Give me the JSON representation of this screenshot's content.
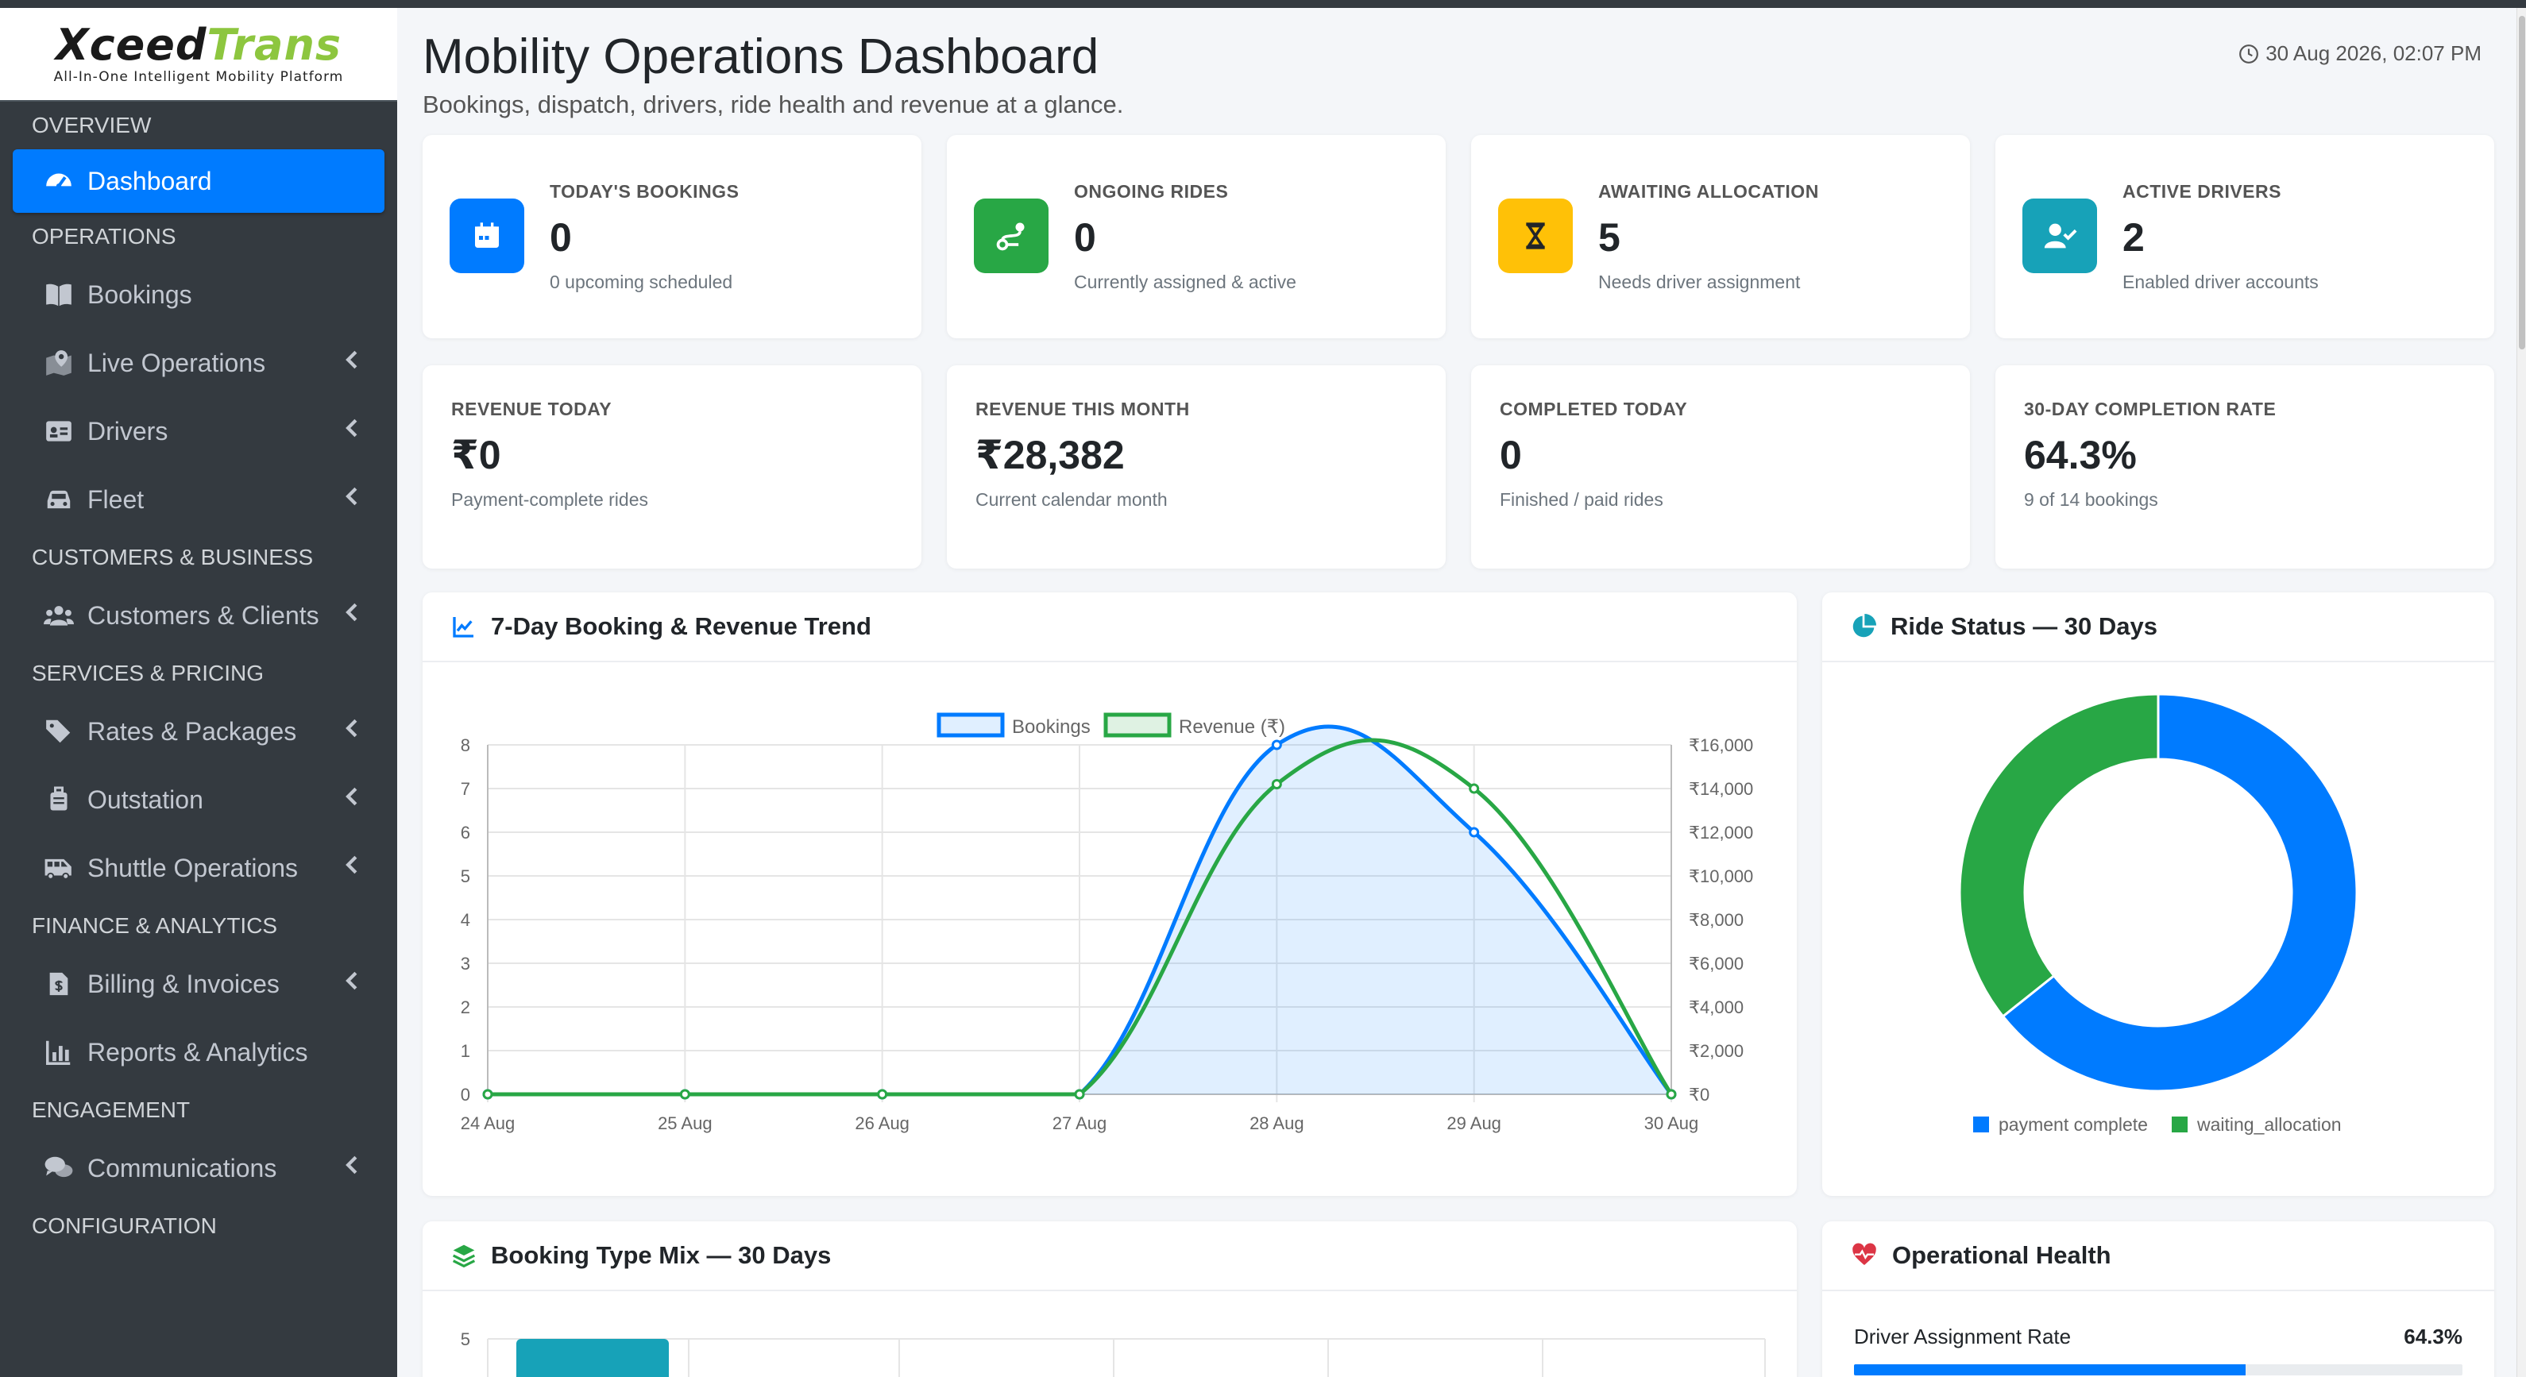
{
  "brand": {
    "name_left": "Xceed",
    "name_right": "Trans",
    "tagline": "All-In-One Intelligent Mobility Platform"
  },
  "sidebar": {
    "sections": [
      {
        "header": "OVERVIEW",
        "items": [
          {
            "label": "Dashboard",
            "icon": "tachometer-icon",
            "active": true
          }
        ]
      },
      {
        "header": "OPERATIONS",
        "items": [
          {
            "label": "Bookings",
            "icon": "book-icon",
            "chevron": false
          },
          {
            "label": "Live Operations",
            "icon": "map-marker-icon",
            "chevron": true
          },
          {
            "label": "Drivers",
            "icon": "id-card-icon",
            "chevron": true
          },
          {
            "label": "Fleet",
            "icon": "car-icon",
            "chevron": true
          }
        ]
      },
      {
        "header": "CUSTOMERS & BUSINESS",
        "items": [
          {
            "label": "Customers & Clients",
            "icon": "users-icon",
            "chevron": true
          }
        ]
      },
      {
        "header": "SERVICES & PRICING",
        "items": [
          {
            "label": "Rates & Packages",
            "icon": "tags-icon",
            "chevron": true
          },
          {
            "label": "Outstation",
            "icon": "suitcase-icon",
            "chevron": true
          },
          {
            "label": "Shuttle Operations",
            "icon": "shuttle-van-icon",
            "chevron": true
          }
        ]
      },
      {
        "header": "FINANCE & ANALYTICS",
        "items": [
          {
            "label": "Billing & Invoices",
            "icon": "invoice-icon",
            "chevron": true
          },
          {
            "label": "Reports & Analytics",
            "icon": "bar-chart-icon",
            "chevron": false
          }
        ]
      },
      {
        "header": "ENGAGEMENT",
        "items": [
          {
            "label": "Communications",
            "icon": "comments-icon",
            "chevron": true
          }
        ]
      },
      {
        "header": "CONFIGURATION",
        "items": []
      }
    ]
  },
  "header": {
    "title": "Mobility Operations Dashboard",
    "subtitle": "Bookings, dispatch, drivers, ride health and revenue at a glance.",
    "datetime": "30 Aug 2026, 02:07 PM"
  },
  "kpis_top": [
    {
      "label": "TODAY'S BOOKINGS",
      "value": "0",
      "note": "0 upcoming scheduled",
      "icon": "calendar-icon",
      "color": "#007bff"
    },
    {
      "label": "ONGOING RIDES",
      "value": "0",
      "note": "Currently assigned & active",
      "icon": "route-icon",
      "color": "#28a745"
    },
    {
      "label": "AWAITING ALLOCATION",
      "value": "5",
      "note": "Needs driver assignment",
      "icon": "hourglass-icon",
      "color": "#ffc107"
    },
    {
      "label": "ACTIVE DRIVERS",
      "value": "2",
      "note": "Enabled driver accounts",
      "icon": "user-check-icon",
      "color": "#17a2b8"
    }
  ],
  "kpis_bottom": [
    {
      "label": "REVENUE TODAY",
      "value": "₹0",
      "note": "Payment-complete rides"
    },
    {
      "label": "REVENUE THIS MONTH",
      "value": "₹28,382",
      "note": "Current calendar month"
    },
    {
      "label": "COMPLETED TODAY",
      "value": "0",
      "note": "Finished / paid rides"
    },
    {
      "label": "30-DAY COMPLETION RATE",
      "value": "64.3%",
      "note": "9 of 14 bookings"
    }
  ],
  "trend_card": {
    "title": "7-Day Booking & Revenue Trend"
  },
  "status_card": {
    "title": "Ride Status — 30 Days"
  },
  "mix_card": {
    "title": "Booking Type Mix — 30 Days"
  },
  "health_card": {
    "title": "Operational Health",
    "rows": [
      {
        "label": "Driver Assignment Rate",
        "value": "64.3%",
        "fraction": 0.643
      }
    ]
  },
  "chart_data": [
    {
      "type": "line",
      "title": "7-Day Booking & Revenue Trend",
      "categories": [
        "24 Aug",
        "25 Aug",
        "26 Aug",
        "27 Aug",
        "28 Aug",
        "29 Aug",
        "30 Aug"
      ],
      "series": [
        {
          "name": "Bookings",
          "axis": "left",
          "values": [
            0,
            0,
            0,
            0,
            8,
            6,
            0
          ],
          "color": "#007bff",
          "fill": true
        },
        {
          "name": "Revenue (₹)",
          "axis": "right",
          "values": [
            0,
            0,
            0,
            0,
            14200,
            14000,
            0
          ],
          "color": "#28a745",
          "fill": false
        }
      ],
      "y_left": {
        "min": 0,
        "max": 8,
        "ticks": [
          "0",
          "1",
          "2",
          "3",
          "4",
          "5",
          "6",
          "7",
          "8"
        ]
      },
      "y_right": {
        "min": 0,
        "max": 16000,
        "ticks": [
          "₹0",
          "₹2,000",
          "₹4,000",
          "₹6,000",
          "₹8,000",
          "₹10,000",
          "₹12,000",
          "₹14,000",
          "₹16,000"
        ]
      },
      "legend": "top",
      "grid": true
    },
    {
      "type": "pie",
      "title": "Ride Status — 30 Days",
      "doughnut": true,
      "labels": [
        "payment complete",
        "waiting_allocation"
      ],
      "values": [
        9,
        5
      ],
      "colors": [
        "#007bff",
        "#28a745"
      ],
      "legend": "bottom"
    },
    {
      "type": "bar",
      "title": "Booking Type Mix — 30 Days",
      "y_ticks": [
        "5"
      ],
      "bar_color": "#17a2b8"
    }
  ]
}
